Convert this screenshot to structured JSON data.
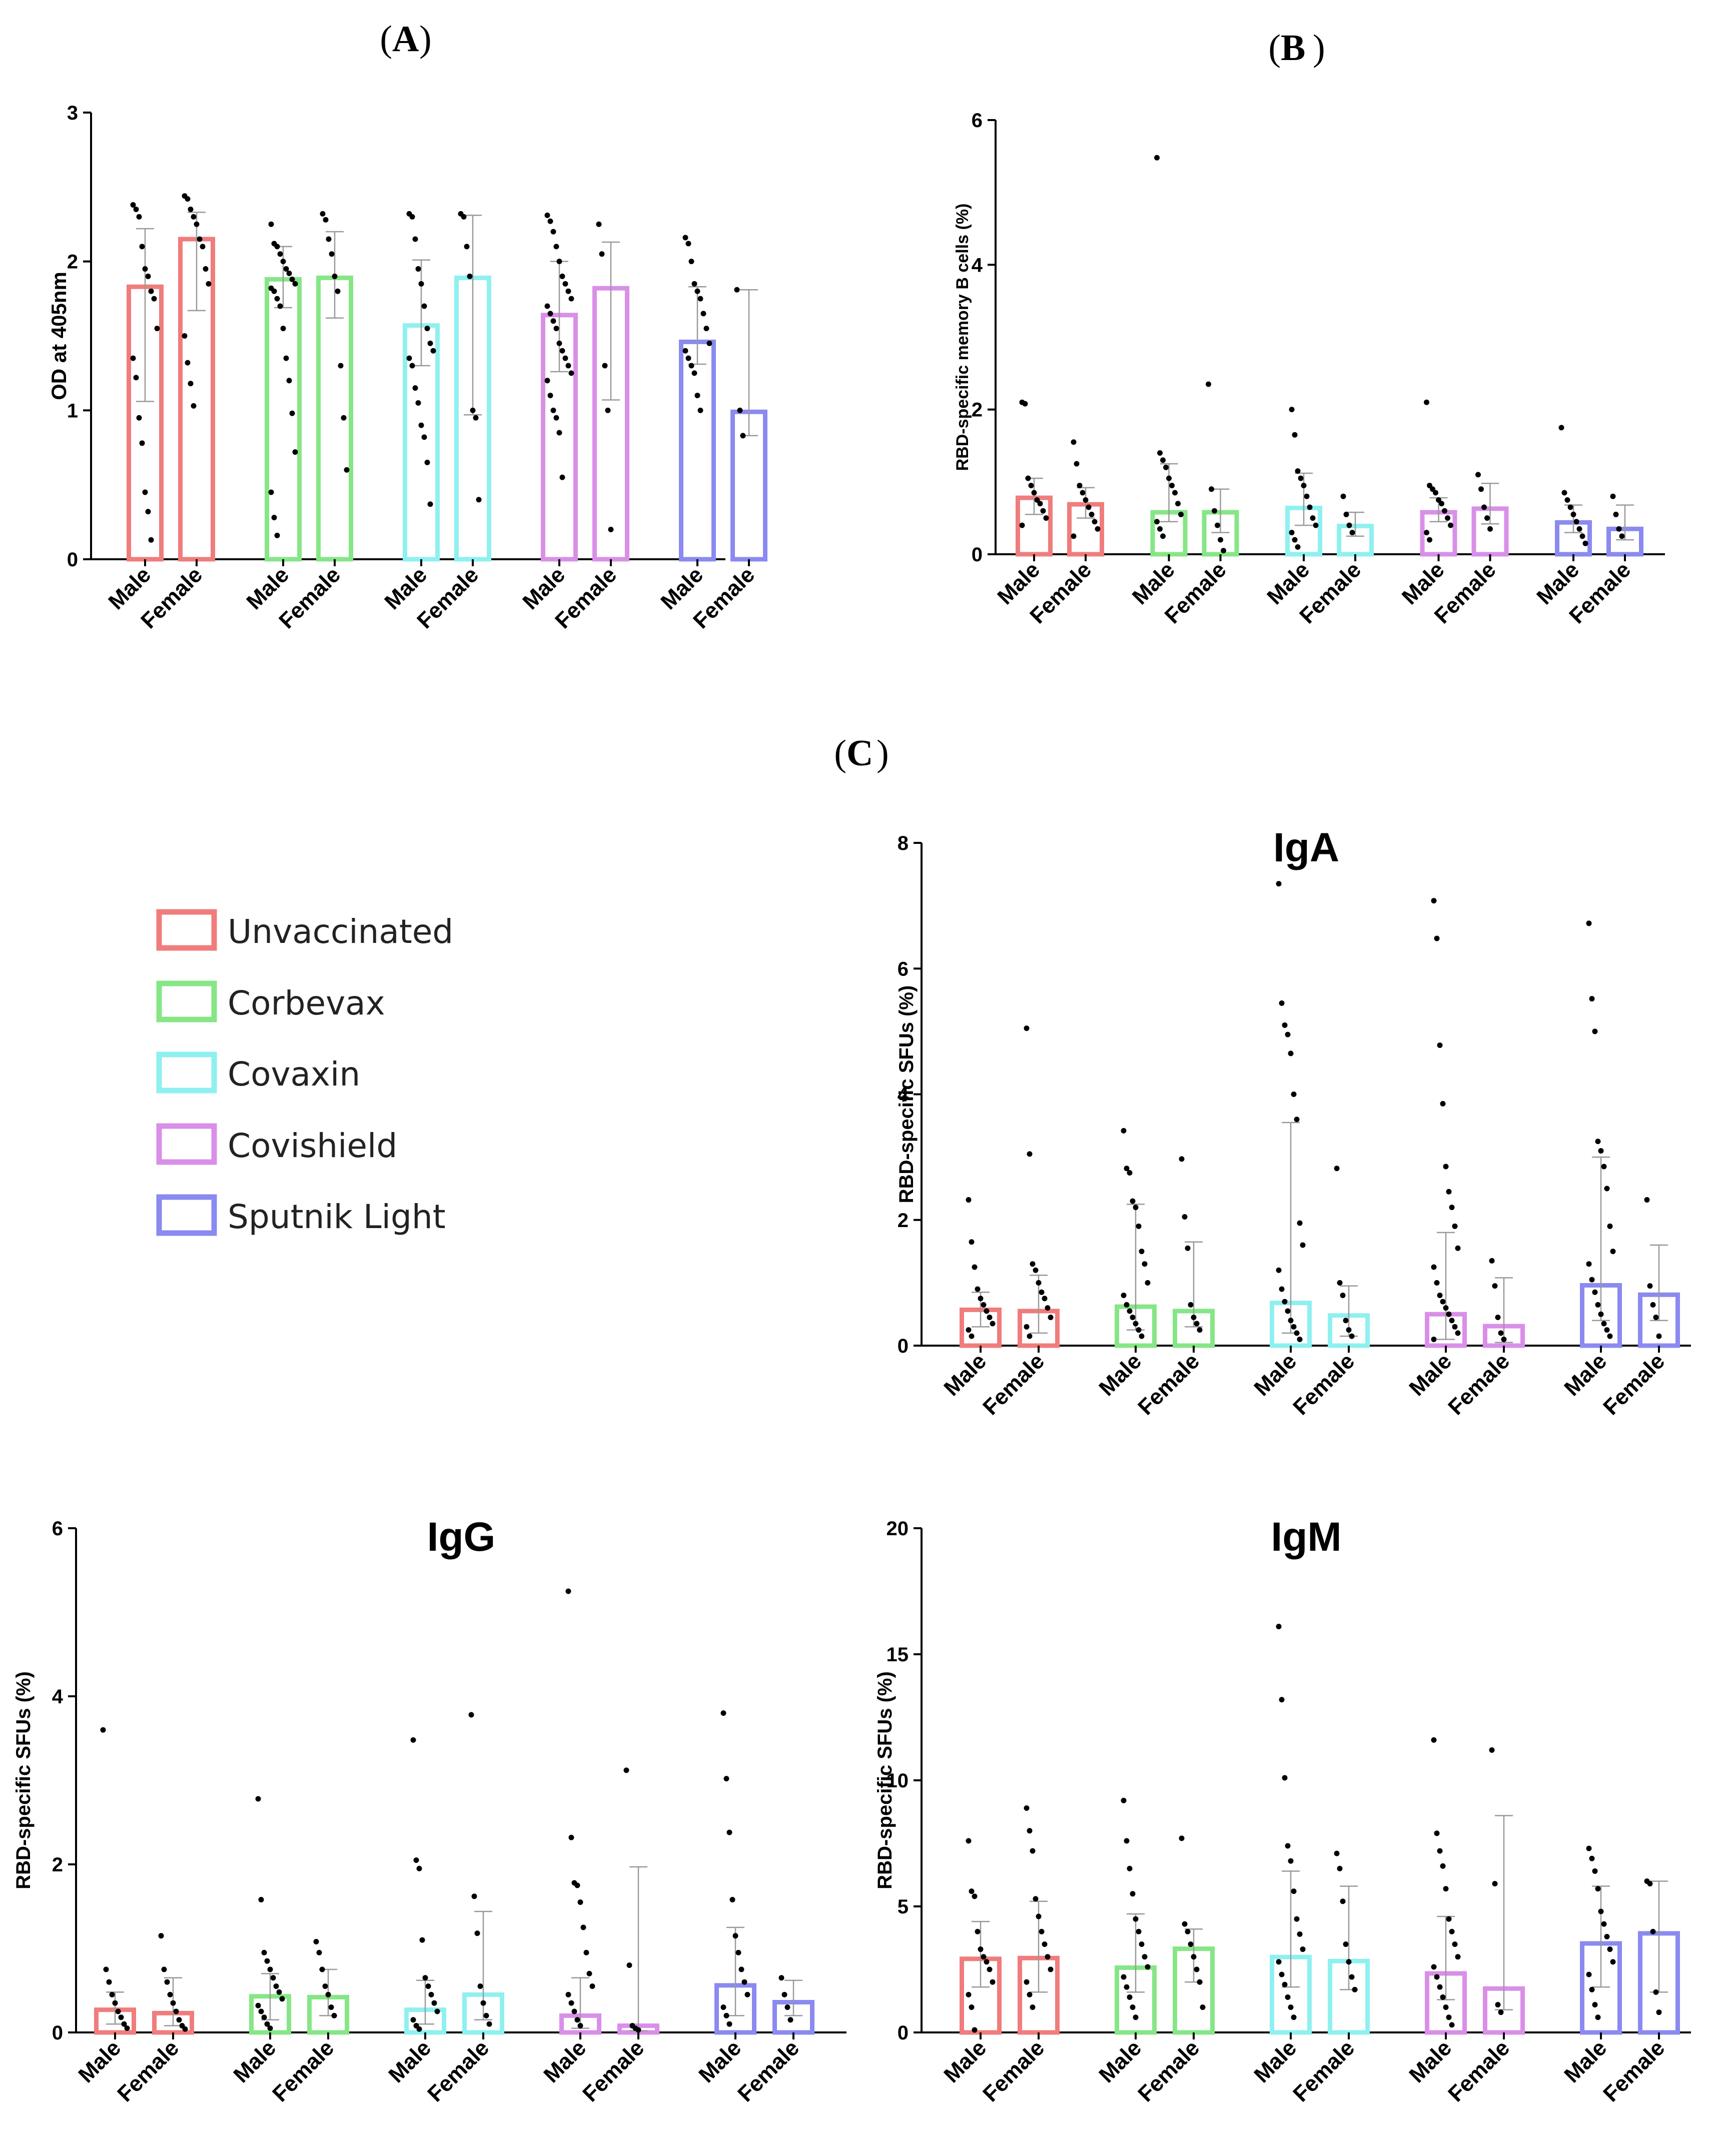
{
  "panel_labels": [
    "A",
    "B",
    "C"
  ],
  "legend": [
    {
      "label": "Unvaccinated",
      "color": "#f07c7c"
    },
    {
      "label": "Corbevax",
      "color": "#86e686"
    },
    {
      "label": "Covaxin",
      "color": "#8ff0f0"
    },
    {
      "label": "Covishield",
      "color": "#d98fe8"
    },
    {
      "label": "Sputnik Light",
      "color": "#8a8af0"
    }
  ],
  "chart_data": [
    {
      "id": "A",
      "type": "bar",
      "title": "",
      "xlabel": "",
      "ylabel": "OD at 405nm",
      "ylim": [
        0,
        3
      ],
      "yticks": [
        0,
        1,
        2,
        3
      ],
      "categories": [
        "Male",
        "Female",
        "Male",
        "Female",
        "Male",
        "Female",
        "Male",
        "Female",
        "Male",
        "Female"
      ],
      "groups": [
        "Unvaccinated",
        "Unvaccinated",
        "Corbevax",
        "Corbevax",
        "Covaxin",
        "Covaxin",
        "Covishield",
        "Covishield",
        "Sputnik Light",
        "Sputnik Light"
      ],
      "values": [
        1.83,
        2.15,
        1.88,
        1.89,
        1.57,
        1.89,
        1.64,
        1.82,
        1.46,
        0.99
      ],
      "error_low": [
        1.06,
        1.67,
        1.69,
        1.62,
        1.3,
        0.97,
        1.26,
        1.07,
        1.31,
        0.83
      ],
      "error_high": [
        2.22,
        2.33,
        2.1,
        2.2,
        2.01,
        2.31,
        2.0,
        2.13,
        1.83,
        1.81
      ],
      "points": [
        [
          2.38,
          2.35,
          2.3,
          2.1,
          1.95,
          1.9,
          1.8,
          1.75,
          1.55,
          1.35,
          1.22,
          0.95,
          0.78,
          0.45,
          0.32,
          0.13
        ],
        [
          2.44,
          2.42,
          2.35,
          2.3,
          2.25,
          2.15,
          2.1,
          1.95,
          1.85,
          1.5,
          1.32,
          1.18,
          1.03
        ],
        [
          2.25,
          2.12,
          2.1,
          2.05,
          2.0,
          1.95,
          1.92,
          1.88,
          1.85,
          1.82,
          1.8,
          1.75,
          1.7,
          1.55,
          1.35,
          1.2,
          0.98,
          0.72,
          0.45,
          0.28,
          0.16
        ],
        [
          2.32,
          2.28,
          2.15,
          2.05,
          1.9,
          1.8,
          1.3,
          0.95,
          0.6
        ],
        [
          2.32,
          2.3,
          2.15,
          1.95,
          1.85,
          1.7,
          1.55,
          1.45,
          1.4,
          1.35,
          1.3,
          1.15,
          1.05,
          0.9,
          0.82,
          0.65,
          0.37
        ],
        [
          2.32,
          2.3,
          2.1,
          1.9,
          1.0,
          0.95,
          0.4
        ],
        [
          2.31,
          2.27,
          2.2,
          2.1,
          2.0,
          1.9,
          1.85,
          1.8,
          1.75,
          1.7,
          1.65,
          1.6,
          1.55,
          1.45,
          1.4,
          1.35,
          1.3,
          1.25,
          1.2,
          1.1,
          1.0,
          0.95,
          0.85,
          0.55
        ],
        [
          2.25,
          2.05,
          1.3,
          1.0,
          0.2
        ],
        [
          2.16,
          2.12,
          2.0,
          1.85,
          1.8,
          1.75,
          1.65,
          1.55,
          1.45,
          1.4,
          1.35,
          1.3,
          1.25,
          1.1,
          1.0
        ],
        [
          1.81,
          1.0,
          0.83
        ]
      ]
    },
    {
      "id": "B",
      "type": "bar",
      "title": "",
      "xlabel": "",
      "ylabel": "RBD-specific memory B cells (%)",
      "ylim": [
        0,
        6
      ],
      "yticks": [
        0,
        2,
        4,
        6
      ],
      "categories": [
        "Male",
        "Female",
        "Male",
        "Female",
        "Male",
        "Female",
        "Male",
        "Female",
        "Male",
        "Female"
      ],
      "groups": [
        "Unvaccinated",
        "Unvaccinated",
        "Corbevax",
        "Corbevax",
        "Covaxin",
        "Covaxin",
        "Covishield",
        "Covishield",
        "Sputnik Light",
        "Sputnik Light"
      ],
      "values": [
        0.78,
        0.69,
        0.58,
        0.58,
        0.64,
        0.39,
        0.58,
        0.63,
        0.44,
        0.35
      ],
      "error_low": [
        0.55,
        0.5,
        0.45,
        0.3,
        0.4,
        0.25,
        0.45,
        0.42,
        0.3,
        0.2
      ],
      "error_high": [
        1.05,
        0.92,
        1.25,
        0.9,
        1.12,
        0.58,
        0.78,
        0.98,
        0.68,
        0.68
      ],
      "points": [
        [
          2.1,
          2.08,
          1.05,
          0.95,
          0.85,
          0.75,
          0.7,
          0.6,
          0.5,
          0.4
        ],
        [
          1.55,
          1.25,
          0.95,
          0.85,
          0.75,
          0.65,
          0.55,
          0.45,
          0.35,
          0.25
        ],
        [
          5.48,
          1.4,
          1.3,
          1.2,
          1.05,
          0.95,
          0.85,
          0.7,
          0.55,
          0.45,
          0.35,
          0.25
        ],
        [
          2.35,
          0.9,
          0.6,
          0.4,
          0.2,
          0.05
        ],
        [
          2.0,
          1.65,
          1.15,
          1.05,
          0.95,
          0.8,
          0.65,
          0.5,
          0.4,
          0.3,
          0.2,
          0.1
        ],
        [
          0.8,
          0.55,
          0.4,
          0.3
        ],
        [
          2.1,
          0.95,
          0.9,
          0.85,
          0.75,
          0.7,
          0.6,
          0.5,
          0.4,
          0.3,
          0.2
        ],
        [
          1.1,
          0.9,
          0.65,
          0.5,
          0.35
        ],
        [
          1.75,
          0.85,
          0.75,
          0.65,
          0.55,
          0.45,
          0.35,
          0.25,
          0.15
        ],
        [
          0.8,
          0.55,
          0.35,
          0.25
        ]
      ]
    },
    {
      "id": "C-IgA",
      "type": "bar",
      "title": "IgA",
      "xlabel": "",
      "ylabel": "RBD-specific SFUs (%)",
      "ylim": [
        0,
        8
      ],
      "yticks": [
        0,
        2,
        4,
        6,
        8
      ],
      "categories": [
        "Male",
        "Female",
        "Male",
        "Female",
        "Male",
        "Female",
        "Male",
        "Female",
        "Male",
        "Female"
      ],
      "groups": [
        "Unvaccinated",
        "Unvaccinated",
        "Corbevax",
        "Corbevax",
        "Covaxin",
        "Covaxin",
        "Covishield",
        "Covishield",
        "Sputnik Light",
        "Sputnik Light"
      ],
      "values": [
        0.57,
        0.55,
        0.62,
        0.55,
        0.68,
        0.48,
        0.5,
        0.31,
        0.96,
        0.81
      ],
      "error_low": [
        0.3,
        0.2,
        0.25,
        0.3,
        0.2,
        0.15,
        0.1,
        0.05,
        0.4,
        0.4
      ],
      "error_high": [
        0.85,
        1.12,
        2.25,
        1.65,
        3.55,
        0.95,
        1.8,
        1.08,
        3.0,
        1.6
      ],
      "points": [
        [
          2.32,
          1.65,
          1.25,
          0.9,
          0.75,
          0.65,
          0.55,
          0.45,
          0.35,
          0.25,
          0.15
        ],
        [
          5.05,
          3.05,
          1.3,
          1.2,
          1.0,
          0.85,
          0.75,
          0.6,
          0.45,
          0.3,
          0.15
        ],
        [
          3.42,
          2.82,
          2.75,
          2.3,
          2.2,
          1.9,
          1.5,
          1.3,
          1.0,
          0.8,
          0.65,
          0.55,
          0.45,
          0.35,
          0.25,
          0.15
        ],
        [
          2.97,
          2.05,
          1.55,
          0.65,
          0.45,
          0.35,
          0.25
        ],
        [
          7.35,
          5.45,
          5.1,
          4.95,
          4.65,
          4.0,
          3.6,
          1.95,
          1.6,
          1.2,
          0.9,
          0.7,
          0.55,
          0.4,
          0.3,
          0.2,
          0.1
        ],
        [
          2.82,
          1.0,
          0.8,
          0.4,
          0.25,
          0.15
        ],
        [
          7.08,
          6.48,
          4.78,
          3.85,
          2.85,
          2.45,
          2.2,
          1.9,
          1.55,
          1.25,
          1.0,
          0.8,
          0.7,
          0.6,
          0.5,
          0.4,
          0.3,
          0.2,
          0.1
        ],
        [
          1.35,
          0.95,
          0.45,
          0.2,
          0.1
        ],
        [
          6.72,
          5.52,
          5.0,
          3.25,
          3.1,
          2.85,
          2.5,
          1.9,
          1.5,
          1.3,
          1.05,
          0.85,
          0.65,
          0.5,
          0.35,
          0.25,
          0.15
        ],
        [
          2.32,
          0.95,
          0.65,
          0.45,
          0.15
        ]
      ]
    },
    {
      "id": "C-IgG",
      "type": "bar",
      "title": "IgG",
      "xlabel": "",
      "ylabel": "RBD-specific SFUs (%)",
      "ylim": [
        0,
        6
      ],
      "yticks": [
        0,
        2,
        4,
        6
      ],
      "categories": [
        "Male",
        "Female",
        "Male",
        "Female",
        "Male",
        "Female",
        "Male",
        "Female",
        "Male",
        "Female"
      ],
      "groups": [
        "Unvaccinated",
        "Unvaccinated",
        "Corbevax",
        "Corbevax",
        "Covaxin",
        "Covaxin",
        "Covishield",
        "Covishield",
        "Sputnik Light",
        "Sputnik Light"
      ],
      "values": [
        0.27,
        0.23,
        0.43,
        0.42,
        0.27,
        0.45,
        0.2,
        0.08,
        0.56,
        0.36
      ],
      "error_low": [
        0.1,
        0.08,
        0.15,
        0.2,
        0.1,
        0.15,
        0.05,
        0.02,
        0.2,
        0.2
      ],
      "error_high": [
        0.48,
        0.65,
        0.7,
        0.75,
        0.62,
        1.44,
        0.65,
        1.97,
        1.25,
        0.62
      ],
      "points": [
        [
          3.6,
          0.75,
          0.6,
          0.45,
          0.35,
          0.25,
          0.18,
          0.1,
          0.05
        ],
        [
          1.15,
          0.75,
          0.6,
          0.45,
          0.35,
          0.25,
          0.15,
          0.08,
          0.04
        ],
        [
          2.78,
          1.58,
          0.95,
          0.85,
          0.75,
          0.65,
          0.55,
          0.48,
          0.4,
          0.32,
          0.25,
          0.18,
          0.1,
          0.05
        ],
        [
          1.08,
          0.95,
          0.75,
          0.55,
          0.45,
          0.3,
          0.2
        ],
        [
          3.48,
          2.05,
          1.95,
          1.1,
          0.65,
          0.55,
          0.45,
          0.35,
          0.25,
          0.15,
          0.08,
          0.04
        ],
        [
          3.78,
          1.62,
          1.18,
          0.55,
          0.35,
          0.2,
          0.1
        ],
        [
          5.25,
          2.32,
          1.78,
          1.75,
          1.55,
          1.25,
          0.95,
          0.7,
          0.55,
          0.45,
          0.35,
          0.25,
          0.15,
          0.08
        ],
        [
          3.12,
          0.8,
          0.08,
          0.05,
          0.03
        ],
        [
          3.8,
          3.02,
          2.38,
          1.58,
          1.15,
          0.95,
          0.75,
          0.6,
          0.45,
          0.3,
          0.2,
          0.1
        ],
        [
          0.65,
          0.45,
          0.3,
          0.15
        ]
      ]
    },
    {
      "id": "C-IgM",
      "type": "bar",
      "title": "IgM",
      "xlabel": "",
      "ylabel": "RBD-specific SFUs (%)",
      "ylim": [
        0,
        20
      ],
      "yticks": [
        0,
        5,
        10,
        15,
        20
      ],
      "categories": [
        "Male",
        "Female",
        "Male",
        "Female",
        "Male",
        "Female",
        "Male",
        "Female",
        "Male",
        "Female"
      ],
      "groups": [
        "Unvaccinated",
        "Unvaccinated",
        "Corbevax",
        "Corbevax",
        "Covaxin",
        "Covaxin",
        "Covishield",
        "Covishield",
        "Sputnik Light",
        "Sputnik Light"
      ],
      "values": [
        2.92,
        2.95,
        2.57,
        3.32,
        2.99,
        2.83,
        2.34,
        1.74,
        3.53,
        3.93
      ],
      "error_low": [
        1.8,
        1.6,
        1.6,
        2.0,
        1.8,
        1.7,
        1.3,
        0.9,
        1.8,
        1.6
      ],
      "error_high": [
        4.4,
        5.2,
        4.7,
        4.1,
        6.4,
        5.8,
        4.6,
        8.6,
        5.8,
        6.0
      ],
      "points": [
        [
          7.6,
          5.6,
          5.4,
          4.0,
          3.3,
          3.0,
          2.8,
          2.5,
          2.0,
          1.5,
          1.0,
          0.1
        ],
        [
          8.9,
          8.0,
          7.2,
          5.3,
          4.6,
          4.0,
          3.5,
          3.0,
          2.5,
          2.0,
          1.5,
          1.0
        ],
        [
          9.2,
          7.6,
          6.5,
          5.5,
          4.5,
          4.0,
          3.5,
          3.0,
          2.6,
          2.2,
          1.8,
          1.4,
          1.0,
          0.6
        ],
        [
          7.7,
          4.3,
          4.0,
          3.5,
          3.0,
          2.5,
          2.0,
          1.0
        ],
        [
          16.1,
          13.2,
          10.1,
          7.4,
          6.8,
          5.6,
          4.5,
          3.9,
          3.3,
          2.8,
          2.3,
          1.9,
          1.4,
          1.0,
          0.6
        ],
        [
          7.1,
          6.5,
          5.2,
          3.5,
          2.8,
          2.2,
          1.7
        ],
        [
          11.6,
          7.9,
          7.2,
          6.6,
          5.7,
          4.5,
          4.0,
          3.5,
          3.0,
          2.6,
          2.2,
          1.8,
          1.4,
          1.0,
          0.6,
          0.3
        ],
        [
          11.2,
          5.9,
          1.1,
          0.8
        ],
        [
          7.3,
          6.9,
          6.4,
          5.7,
          4.8,
          4.3,
          3.8,
          3.3,
          2.8,
          2.3,
          1.7,
          1.1,
          0.6
        ],
        [
          6.0,
          5.9,
          4.0,
          1.6,
          0.8
        ]
      ]
    }
  ]
}
